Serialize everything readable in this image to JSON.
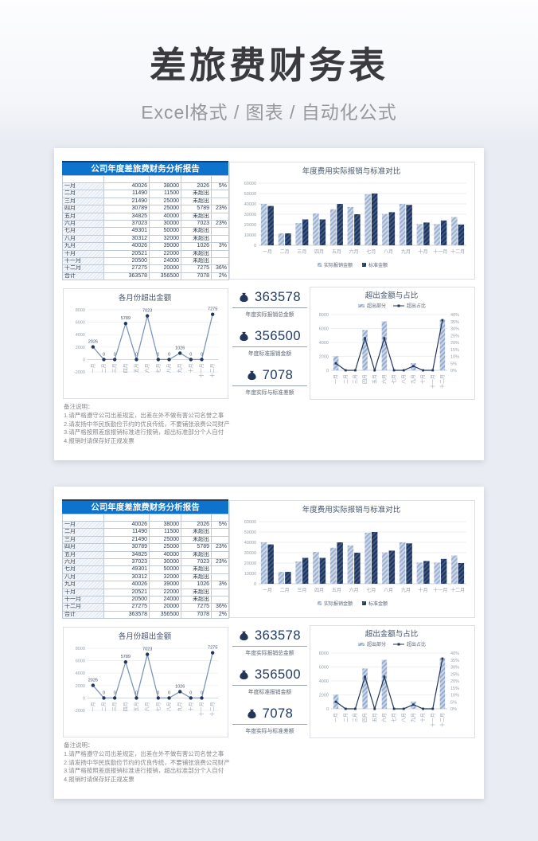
{
  "page": {
    "title": "差旅费财务表",
    "subtitle": "Excel格式 / 图表 / 自动化公式"
  },
  "colors": {
    "accent_blue": "#0d73cd",
    "navy_series": "#22365a",
    "light_series": "#b9c8de",
    "kpi_number": "#1f3864"
  },
  "card": {
    "report_title": "公司年度差旅费财务分析报告",
    "table": {
      "rows": [
        {
          "month": "一月",
          "actual": "40026",
          "standard": "38000",
          "excess": "2026",
          "pct": "5%"
        },
        {
          "month": "二月",
          "actual": "11490",
          "standard": "11500",
          "excess": "未超出",
          "pct": ""
        },
        {
          "month": "三月",
          "actual": "21490",
          "standard": "25000",
          "excess": "未超出",
          "pct": ""
        },
        {
          "month": "四月",
          "actual": "30789",
          "standard": "25000",
          "excess": "5789",
          "pct": "23%"
        },
        {
          "month": "五月",
          "actual": "34825",
          "standard": "40000",
          "excess": "未超出",
          "pct": ""
        },
        {
          "month": "六月",
          "actual": "37023",
          "standard": "30000",
          "excess": "7023",
          "pct": "23%"
        },
        {
          "month": "七月",
          "actual": "49301",
          "standard": "50000",
          "excess": "未超出",
          "pct": ""
        },
        {
          "month": "八月",
          "actual": "30312",
          "standard": "32000",
          "excess": "未超出",
          "pct": ""
        },
        {
          "month": "九月",
          "actual": "40026",
          "standard": "39000",
          "excess": "1026",
          "pct": "3%"
        },
        {
          "month": "十月",
          "actual": "20521",
          "standard": "22000",
          "excess": "未超出",
          "pct": ""
        },
        {
          "month": "十一月",
          "actual": "20500",
          "standard": "24000",
          "excess": "未超出",
          "pct": ""
        },
        {
          "month": "十二月",
          "actual": "27275",
          "standard": "20000",
          "excess": "7275",
          "pct": "36%"
        },
        {
          "month": "合计",
          "actual": "363578",
          "standard": "356500",
          "excess": "7078",
          "pct": "2%"
        }
      ]
    },
    "kpis": [
      {
        "value": "363578",
        "label": "年度实际报销总金额"
      },
      {
        "value": "356500",
        "label": "年度标准报销金额"
      },
      {
        "value": "7078",
        "label": "年度实际与标准差额"
      }
    ],
    "notes": {
      "title": "备注说明：",
      "items": [
        "1.请严格遵守公司出差规定，出差在外不做有害公司名誉之事",
        "2.请发扬中华民族勤俭节约的优良传统，不要铺张浪费公司财产",
        "3.请严格按照差旅报销标准进行报销，超出标准部分个人自付",
        "4.报销时请保存好正规发票"
      ]
    }
  },
  "chart_data": [
    {
      "id": "bar",
      "type": "bar",
      "title": "年度费用实际报销与标准对比",
      "categories": [
        "一月",
        "二月",
        "三月",
        "四月",
        "五月",
        "六月",
        "七月",
        "八月",
        "九月",
        "十月",
        "十一月",
        "十二月"
      ],
      "series": [
        {
          "name": "实际报销金额",
          "values": [
            40026,
            11490,
            21490,
            30789,
            34825,
            37023,
            49301,
            30312,
            40026,
            20521,
            20500,
            27275
          ]
        },
        {
          "name": "标准金额",
          "values": [
            38000,
            11500,
            25000,
            25000,
            40000,
            30000,
            50000,
            32000,
            39000,
            22000,
            24000,
            20000
          ]
        }
      ],
      "ylim": [
        0,
        60000
      ],
      "ystep": 10000,
      "grid": true,
      "legend_position": "bottom"
    },
    {
      "id": "line",
      "type": "line",
      "title": "各月份超出金额",
      "categories": [
        "一月",
        "二月",
        "三月",
        "四月",
        "五月",
        "六月",
        "七月",
        "八月",
        "九月",
        "十月",
        "十一月",
        "十二月"
      ],
      "values": [
        2026,
        0,
        0,
        5789,
        0,
        7023,
        0,
        0,
        1026,
        0,
        0,
        7275
      ],
      "ylim": [
        -2000,
        8000
      ],
      "ystep": 2000,
      "grid": true,
      "data_labels": true
    },
    {
      "id": "combo",
      "type": "bar+line",
      "title": "超出金额与占比",
      "categories": [
        "一月",
        "二月",
        "三月",
        "四月",
        "五月",
        "六月",
        "七月",
        "八月",
        "九月",
        "十月",
        "十一月",
        "十二月"
      ],
      "series": [
        {
          "name": "超出部分",
          "type": "bar",
          "axis": "left",
          "values": [
            2026,
            0,
            0,
            5789,
            0,
            7023,
            0,
            0,
            1026,
            0,
            0,
            7275
          ]
        },
        {
          "name": "超出占比",
          "type": "line",
          "axis": "right",
          "values": [
            5,
            0,
            0,
            23,
            0,
            23,
            0,
            0,
            3,
            0,
            0,
            36
          ]
        }
      ],
      "left_ylim": [
        0,
        8000
      ],
      "left_ystep": 2000,
      "right_ylim": [
        0,
        40
      ],
      "right_ystep": 5,
      "right_unit": "%",
      "grid": true,
      "legend_position": "top"
    }
  ]
}
